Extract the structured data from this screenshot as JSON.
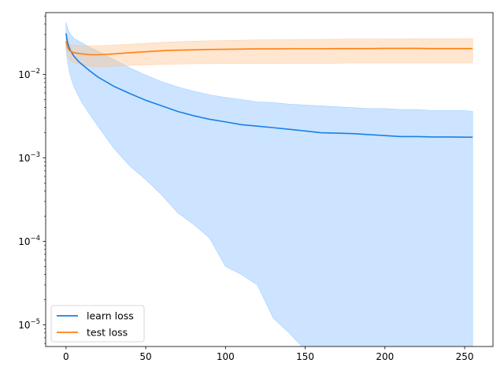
{
  "chart_data": {
    "type": "line",
    "title": "",
    "xlabel": "",
    "ylabel": "",
    "x_range": [
      -12.75,
      267.75
    ],
    "y_scale": "log",
    "y_range": [
      5.5e-06,
      0.055
    ],
    "grid": false,
    "legend_placement": "lower-left",
    "x_ticks": [
      {
        "value": 0,
        "label": "0"
      },
      {
        "value": 50,
        "label": "50"
      },
      {
        "value": 100,
        "label": "100"
      },
      {
        "value": 150,
        "label": "150"
      },
      {
        "value": 200,
        "label": "200"
      },
      {
        "value": 250,
        "label": "250"
      }
    ],
    "y_ticks": [
      {
        "value": 1e-05,
        "base": "10",
        "exp": "−5"
      },
      {
        "value": 0.0001,
        "base": "10",
        "exp": "−4"
      },
      {
        "value": 0.001,
        "base": "10",
        "exp": "−3"
      },
      {
        "value": 0.01,
        "base": "10",
        "exp": "−2"
      }
    ],
    "series": [
      {
        "name": "learn loss",
        "color": "#1a7fe6",
        "band_color": "#7fbcff",
        "x": [
          0,
          1,
          2,
          3,
          5,
          8,
          10,
          15,
          20,
          30,
          40,
          50,
          60,
          70,
          80,
          90,
          100,
          110,
          120,
          130,
          140,
          150,
          160,
          170,
          180,
          190,
          200,
          210,
          220,
          230,
          240,
          250,
          255
        ],
        "mean": [
          0.031,
          0.024,
          0.021,
          0.019,
          0.0165,
          0.0142,
          0.0132,
          0.011,
          0.0093,
          0.0072,
          0.0059,
          0.0049,
          0.0042,
          0.0036,
          0.0032,
          0.0029,
          0.0027,
          0.0025,
          0.0024,
          0.0023,
          0.0022,
          0.0021,
          0.002,
          0.00198,
          0.00195,
          0.0019,
          0.00185,
          0.0018,
          0.0018,
          0.00178,
          0.00178,
          0.00177,
          0.00177
        ],
        "upper": [
          0.042,
          0.036,
          0.032,
          0.03,
          0.027,
          0.025,
          0.024,
          0.021,
          0.019,
          0.015,
          0.012,
          0.0098,
          0.0082,
          0.0071,
          0.0063,
          0.0057,
          0.0053,
          0.005,
          0.0047,
          0.0046,
          0.0044,
          0.0043,
          0.0042,
          0.0041,
          0.004,
          0.0039,
          0.0039,
          0.0038,
          0.0038,
          0.0037,
          0.0037,
          0.0037,
          0.0036
        ],
        "lower": [
          0.02,
          0.014,
          0.011,
          0.0092,
          0.0071,
          0.0054,
          0.0046,
          0.0033,
          0.0024,
          0.0013,
          0.0008,
          0.00055,
          0.00036,
          0.00022,
          0.00016,
          0.00011,
          5e-05,
          4e-05,
          3e-05,
          1.2e-05,
          8e-06,
          5e-06,
          5e-06,
          5e-06,
          5e-06,
          5e-06,
          5e-06,
          5e-06,
          5e-06,
          5e-06,
          5e-06,
          5e-06,
          5e-06
        ]
      },
      {
        "name": "test loss",
        "color": "#ff7f0e",
        "band_color": "#ffc08a",
        "x": [
          0,
          1,
          2,
          3,
          5,
          8,
          10,
          15,
          20,
          30,
          40,
          50,
          60,
          70,
          80,
          90,
          100,
          110,
          120,
          130,
          140,
          150,
          160,
          170,
          180,
          190,
          200,
          210,
          220,
          230,
          240,
          250,
          255
        ],
        "mean": [
          0.025,
          0.021,
          0.0195,
          0.0188,
          0.0182,
          0.0178,
          0.0176,
          0.0172,
          0.0172,
          0.0176,
          0.0182,
          0.0187,
          0.0192,
          0.0195,
          0.0197,
          0.0199,
          0.02,
          0.0201,
          0.0202,
          0.0202,
          0.0203,
          0.0203,
          0.0203,
          0.0204,
          0.0204,
          0.0204,
          0.0205,
          0.0205,
          0.0205,
          0.0204,
          0.0204,
          0.0204,
          0.0204
        ],
        "upper": [
          0.027,
          0.024,
          0.023,
          0.0228,
          0.0225,
          0.0223,
          0.0222,
          0.022,
          0.022,
          0.0225,
          0.023,
          0.0236,
          0.0242,
          0.0246,
          0.025,
          0.0253,
          0.0255,
          0.0257,
          0.0259,
          0.026,
          0.0261,
          0.0262,
          0.0263,
          0.0264,
          0.0265,
          0.0265,
          0.0266,
          0.0266,
          0.0267,
          0.0267,
          0.0267,
          0.0268,
          0.0268
        ],
        "lower": [
          0.022,
          0.017,
          0.0155,
          0.0145,
          0.0138,
          0.0133,
          0.013,
          0.0125,
          0.0123,
          0.0125,
          0.0128,
          0.013,
          0.0132,
          0.0133,
          0.0134,
          0.0134,
          0.0135,
          0.0135,
          0.0135,
          0.0135,
          0.0136,
          0.0136,
          0.0136,
          0.0136,
          0.0137,
          0.0137,
          0.0137,
          0.0137,
          0.0137,
          0.0137,
          0.0137,
          0.0137,
          0.0137
        ]
      }
    ]
  }
}
